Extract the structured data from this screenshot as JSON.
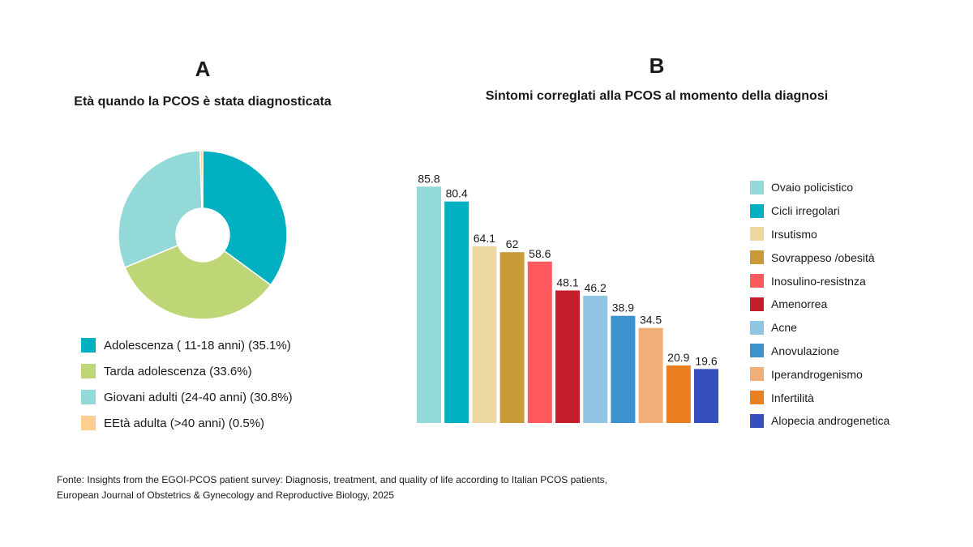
{
  "panel_a": {
    "letter": "A",
    "title": "Età quando la PCOS è stata diagnosticata"
  },
  "panel_b": {
    "letter": "B",
    "title": "Sintomi correglati alla PCOS al  momento della diagnosi"
  },
  "chart_data": [
    {
      "type": "pie",
      "variant": "donut",
      "title": "Età quando la PCOS è stata diagnosticata",
      "categories": [
        "Adolescenza ( 11-18 anni)",
        "Tarda adolescenza",
        "Giovani adulti (24-40 anni)",
        "EEtà adulta (>40 anni)"
      ],
      "values": [
        35.1,
        33.6,
        30.8,
        0.5
      ],
      "legend_labels": [
        "Adolescenza ( 11-18 anni) (35.1%)",
        "Tarda adolescenza (33.6%)",
        "Giovani adulti (24-40 anni) (30.8%)",
        "EEtà adulta (>40 anni) (0.5%)"
      ],
      "colors": [
        "#00b0c0",
        "#bfd677",
        "#92d9d7",
        "#ffcf8f"
      ],
      "legend_position": "bottom"
    },
    {
      "type": "bar",
      "title": "Sintomi correglati alla PCOS al  momento della diagnosi",
      "categories": [
        "Ovaio policistico",
        "Cicli irregolari",
        "Irsutismo",
        "Sovrappeso /obesità",
        "Inosulino-resistnza",
        "Amenorrea",
        "Acne",
        "Anovulazione",
        "Iperandrogenismo",
        "Infertilità",
        "Alopecia androgenetica"
      ],
      "values": [
        85.8,
        80.4,
        64.1,
        62,
        58.6,
        48.1,
        46.2,
        38.9,
        34.5,
        20.9,
        19.6
      ],
      "colors": [
        "#92d9d7",
        "#00b0c0",
        "#ecd8a0",
        "#c89a38",
        "#ff5a5f",
        "#c41e2a",
        "#92c5e3",
        "#3b92cc",
        "#f0ae78",
        "#ea8020",
        "#3550be"
      ],
      "ylim": [
        0,
        100
      ],
      "grid": false,
      "legend_position": "right"
    }
  ],
  "source": {
    "line1": "Fonte: Insights from the EGOI-PCOS patient survey: Diagnosis, treatment, and quality of life according to Italian PCOS patients,",
    "line2": "European Journal of Obstetrics & Gynecology and Reproductive Biology, 2025"
  }
}
